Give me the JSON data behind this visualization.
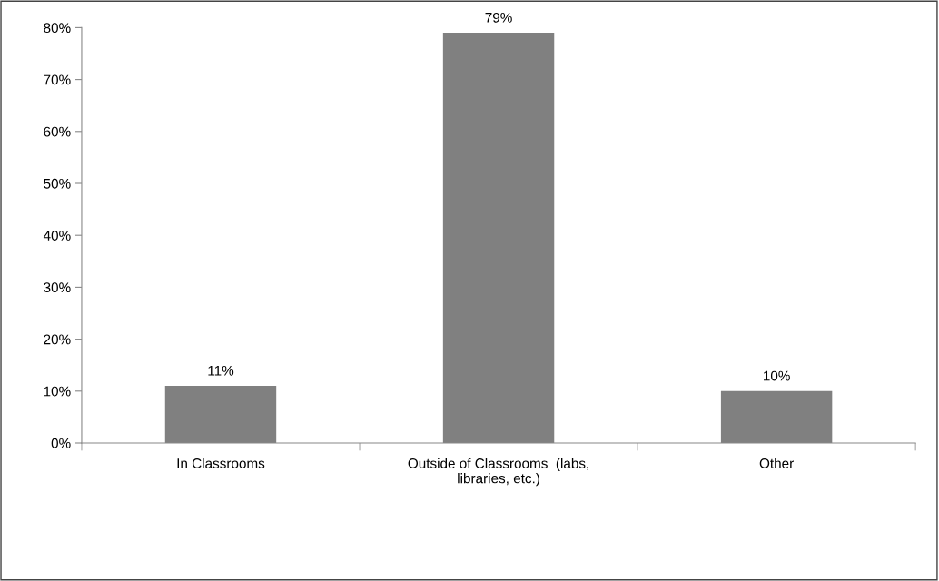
{
  "chart_data": {
    "type": "bar",
    "categories": [
      "In Classrooms",
      "Outside of Classrooms  (labs,\nlibraries, etc.)",
      "Other"
    ],
    "values": [
      11,
      79,
      10
    ],
    "value_labels": [
      "11%",
      "79%",
      "10%"
    ],
    "color": "#808080",
    "ylim": [
      0,
      80
    ],
    "yticks": [
      {
        "value": 0,
        "label": "0%"
      },
      {
        "value": 10,
        "label": "10%"
      },
      {
        "value": 20,
        "label": "20%"
      },
      {
        "value": 30,
        "label": "30%"
      },
      {
        "value": 40,
        "label": "40%"
      },
      {
        "value": 50,
        "label": "50%"
      },
      {
        "value": 60,
        "label": "60%"
      },
      {
        "value": 70,
        "label": "70%"
      },
      {
        "value": 80,
        "label": "80%"
      }
    ],
    "grid": false,
    "legend": false
  }
}
